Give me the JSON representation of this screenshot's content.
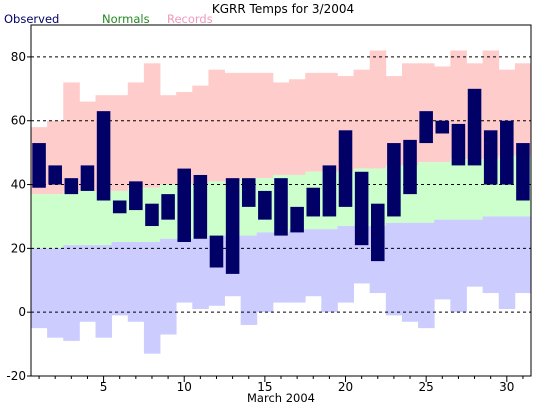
{
  "chart_data": {
    "type": "bar",
    "title": "KGRR Temps for 3/2004",
    "xlabel": "March 2004",
    "ylabel": "",
    "ylim": [
      -20,
      90
    ],
    "xlim": [
      0.5,
      31.5
    ],
    "y_ticks": [
      -20,
      0,
      20,
      40,
      60,
      80
    ],
    "x_ticks": [
      5,
      10,
      15,
      20,
      25,
      30
    ],
    "legend": {
      "placement": "top-left",
      "items": [
        {
          "name": "Observed",
          "color": "#000066"
        },
        {
          "name": "Normals",
          "color": "#228822"
        },
        {
          "name": "Records",
          "color": "#ee99bb"
        }
      ]
    },
    "grid": {
      "y": true,
      "style": "dashed",
      "lines": [
        0,
        20,
        40,
        60,
        80
      ]
    },
    "colors": {
      "observed": "#000066",
      "normal_band": "#ccffcc",
      "record_high_band": "#ffcccc",
      "record_low_band": "#ccccff"
    },
    "days": [
      1,
      2,
      3,
      4,
      5,
      6,
      7,
      8,
      9,
      10,
      11,
      12,
      13,
      14,
      15,
      16,
      17,
      18,
      19,
      20,
      21,
      22,
      23,
      24,
      25,
      26,
      27,
      28,
      29,
      30,
      31
    ],
    "record_high": [
      58,
      60,
      72,
      66,
      68,
      68,
      72,
      78,
      68,
      69,
      71,
      76,
      75,
      75,
      75,
      72,
      73,
      75,
      75,
      74,
      76,
      82,
      74,
      78,
      78,
      77,
      82,
      78,
      82,
      76,
      78
    ],
    "normal_high": [
      37,
      37,
      38,
      38,
      38,
      38,
      39,
      39,
      40,
      40,
      40,
      41,
      41,
      42,
      42,
      43,
      43,
      44,
      44,
      44,
      45,
      45,
      46,
      46,
      47,
      47,
      48,
      48,
      48,
      49,
      49
    ],
    "normal_low": [
      20,
      20,
      21,
      21,
      21,
      22,
      22,
      22,
      23,
      23,
      23,
      24,
      24,
      24,
      25,
      25,
      26,
      26,
      26,
      27,
      27,
      27,
      28,
      28,
      28,
      29,
      29,
      29,
      30,
      30,
      30
    ],
    "record_low": [
      -5,
      -8,
      -9,
      -3,
      -8,
      -1,
      -3,
      -13,
      -7,
      3,
      1,
      2,
      5,
      -4,
      0,
      3,
      3,
      5,
      0,
      3,
      9,
      6,
      -1,
      -3,
      -5,
      4,
      0,
      8,
      6,
      1,
      6
    ],
    "observed_high": [
      53,
      46,
      42,
      46,
      63,
      35,
      41,
      34,
      37,
      45,
      43,
      24,
      42,
      42,
      38,
      42,
      33,
      39,
      46,
      57,
      44,
      34,
      53,
      54,
      63,
      60,
      59,
      70,
      57,
      60,
      53
    ],
    "observed_low": [
      39,
      40,
      37,
      38,
      35,
      31,
      32,
      27,
      29,
      22,
      23,
      14,
      12,
      33,
      29,
      24,
      25,
      30,
      30,
      33,
      21,
      16,
      30,
      37,
      53,
      56,
      46,
      46,
      40,
      40,
      35
    ]
  }
}
